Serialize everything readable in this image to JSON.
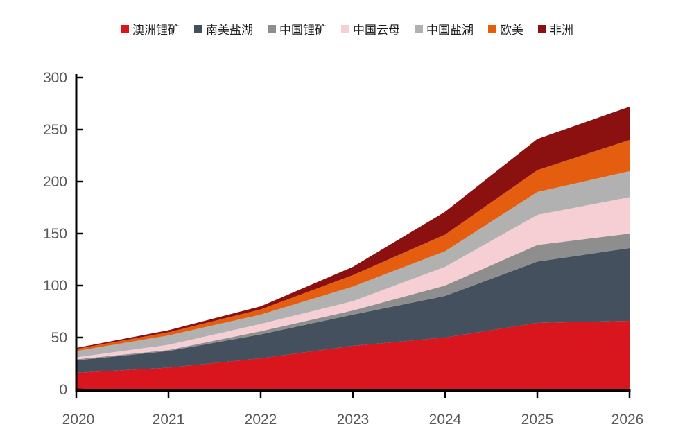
{
  "chart_data": {
    "type": "area",
    "stacked": true,
    "title": "",
    "xlabel": "",
    "ylabel": "",
    "legend_position": "top",
    "grid": false,
    "ylim": [
      0,
      300
    ],
    "yticks": [
      0,
      50,
      100,
      150,
      200,
      250,
      300
    ],
    "categories": [
      "2020",
      "2021",
      "2022",
      "2023",
      "2024",
      "2025",
      "2026"
    ],
    "series": [
      {
        "name": "澳洲锂矿",
        "color": "#D9161D",
        "values": [
          16,
          21,
          30,
          42,
          50,
          64,
          66
        ]
      },
      {
        "name": "南美盐湖",
        "color": "#44505E",
        "values": [
          12,
          16,
          23,
          30,
          40,
          59,
          70
        ]
      },
      {
        "name": "中国锂矿",
        "color": "#8E8E8E",
        "values": [
          1,
          1,
          3,
          4,
          10,
          16,
          14
        ]
      },
      {
        "name": "中国云母",
        "color": "#F5CFD4",
        "values": [
          2,
          5,
          7,
          9,
          18,
          29,
          35
        ]
      },
      {
        "name": "中国盐湖",
        "color": "#B1B1B1",
        "values": [
          6,
          9,
          9,
          14,
          15,
          22,
          25
        ]
      },
      {
        "name": "欧美",
        "color": "#E55D0F",
        "values": [
          2,
          3,
          5,
          11,
          16,
          21,
          30
        ]
      },
      {
        "name": "非洲",
        "color": "#8A1110",
        "values": [
          1,
          2,
          3,
          8,
          22,
          30,
          32
        ]
      }
    ],
    "totals": [
      40,
      57,
      80,
      118,
      171,
      241,
      272
    ],
    "axis_color": "#000000",
    "tick_label_color": "#595959"
  }
}
